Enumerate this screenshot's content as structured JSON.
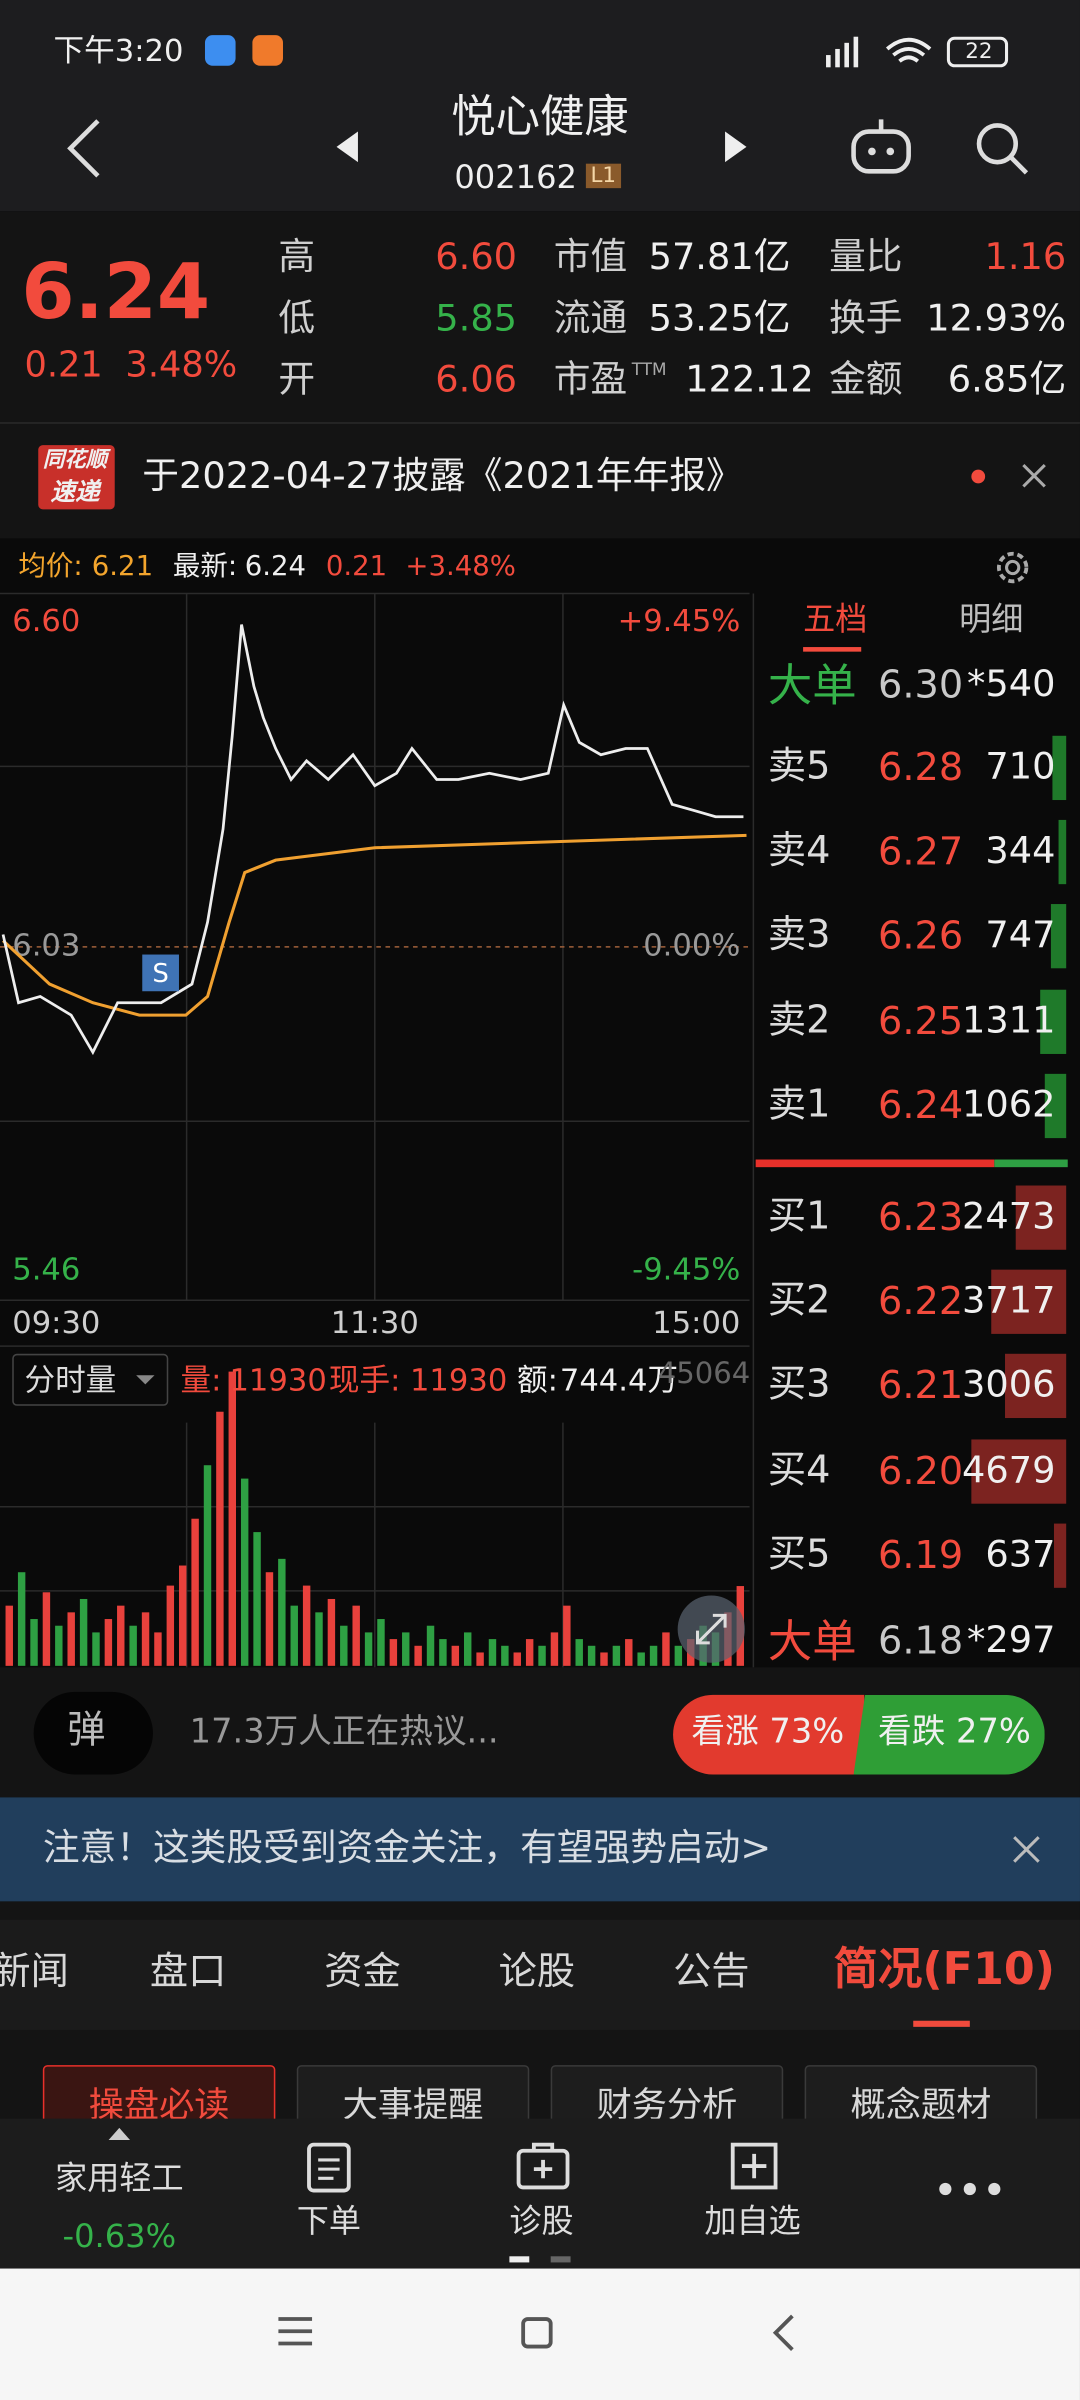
{
  "status_bar": {
    "time": "下午3:20",
    "battery": "22"
  },
  "header": {
    "title": "悦心健康",
    "code": "002162",
    "level": "L1"
  },
  "quote": {
    "price": "6.24",
    "change": "0.21",
    "change_pct": "3.48%",
    "left": [
      {
        "label": "高",
        "value": "6.60"
      },
      {
        "label": "低",
        "value": "5.85"
      },
      {
        "label": "开",
        "value": "6.06"
      }
    ],
    "mid": [
      {
        "label": "市值",
        "value": "57.81亿"
      },
      {
        "label": "流通",
        "value": "53.25亿"
      },
      {
        "label": "市盈",
        "sup": "TTM",
        "value": "122.12"
      }
    ],
    "right": [
      {
        "label": "量比",
        "value": "1.16"
      },
      {
        "label": "换手",
        "value": "12.93%"
      },
      {
        "label": "金额",
        "value": "6.85亿"
      }
    ]
  },
  "notice": {
    "badge_top": "同花顺",
    "badge_bottom": "速递",
    "text": "于2022-04-27披露《2021年年报》"
  },
  "chart": {
    "avg_label": "均价:",
    "avg": "6.21",
    "latest_label": "最新:",
    "latest": "6.24",
    "change": "0.21",
    "change_pct": "+3.48%",
    "ylim": [
      5.46,
      6.6
    ],
    "yticks": [
      {
        "value": 6.6,
        "label": "6.60"
      },
      {
        "value": 6.03,
        "label": "6.03"
      },
      {
        "value": 5.46,
        "label": "5.46"
      }
    ],
    "pct_labels": [
      "+9.45%",
      "0.00%",
      "-9.45%"
    ],
    "times": [
      "09:30",
      "11:30",
      "15:00"
    ],
    "xlim": [
      0,
      240
    ],
    "signal": "S",
    "minutes": [
      0,
      5,
      12,
      22,
      29,
      37,
      44,
      51,
      61,
      66,
      71,
      74,
      77,
      81,
      84,
      88,
      93,
      98,
      105,
      113,
      120,
      127,
      132,
      140,
      147,
      157,
      167,
      176,
      181,
      186,
      193,
      201,
      208,
      216,
      223,
      230,
      239
    ],
    "price": [
      6.05,
      5.94,
      5.95,
      5.92,
      5.86,
      5.94,
      5.94,
      5.94,
      5.97,
      6.07,
      6.22,
      6.37,
      6.55,
      6.45,
      6.4,
      6.35,
      6.3,
      6.33,
      6.3,
      6.34,
      6.29,
      6.31,
      6.35,
      6.3,
      6.3,
      6.31,
      6.3,
      6.31,
      6.42,
      6.36,
      6.34,
      6.35,
      6.35,
      6.26,
      6.25,
      6.24,
      6.24
    ],
    "avg_minutes": [
      0,
      15,
      29,
      44,
      59,
      66,
      73,
      78,
      88,
      120,
      180,
      240
    ],
    "avg_line": [
      6.04,
      5.97,
      5.94,
      5.92,
      5.92,
      5.95,
      6.07,
      6.15,
      6.17,
      6.19,
      6.2,
      6.21
    ]
  },
  "volume": {
    "mode": "分时量",
    "vol_label": "量:",
    "vol": "11930",
    "hand_label": "现手:",
    "hand": "11930",
    "amount_label": "额:",
    "amount": "744.4万",
    "max_label": "45064",
    "ylim": [
      0,
      45064
    ],
    "values": [
      9000,
      14000,
      7000,
      11000,
      6000,
      8000,
      10000,
      5000,
      7000,
      9000,
      6000,
      8000,
      5000,
      12000,
      15000,
      22000,
      30000,
      38000,
      44000,
      28000,
      20000,
      14000,
      16000,
      9000,
      12000,
      8000,
      10000,
      6000,
      9000,
      5000,
      7000,
      4000,
      5000,
      3000,
      6000,
      4000,
      3000,
      5000,
      2000,
      4000,
      3000,
      2000,
      4000,
      3000,
      5000,
      9000,
      4000,
      3000,
      2000,
      3000,
      4000,
      2000,
      3000,
      5000,
      3000,
      4000,
      6000,
      5000,
      8000,
      11930
    ],
    "bar_colors": [
      "#e8413c",
      "#2ea043",
      "#2ea043",
      "#e8413c",
      "#2ea043",
      "#e8413c",
      "#2ea043",
      "#2ea043",
      "#e8413c",
      "#e8413c",
      "#2ea043",
      "#e8413c",
      "#e8413c",
      "#e8413c",
      "#e8413c",
      "#e8413c",
      "#2ea043",
      "#e8413c",
      "#e8413c",
      "#2ea043",
      "#2ea043",
      "#e8413c",
      "#2ea043",
      "#2ea043",
      "#e8413c",
      "#2ea043",
      "#e8413c",
      "#2ea043",
      "#e8413c",
      "#2ea043",
      "#2ea043",
      "#e8413c",
      "#2ea043",
      "#e8413c",
      "#2ea043",
      "#2ea043",
      "#e8413c",
      "#2ea043",
      "#e8413c",
      "#2ea043",
      "#2ea043",
      "#e8413c",
      "#e8413c",
      "#2ea043",
      "#e8413c",
      "#e8413c",
      "#2ea043",
      "#2ea043",
      "#e8413c",
      "#2ea043",
      "#e8413c",
      "#2ea043",
      "#2ea043",
      "#e8413c",
      "#2ea043",
      "#e8413c",
      "#2ea043",
      "#2ea043",
      "#e8413c",
      "#e8413c"
    ]
  },
  "orderbook": {
    "tabs": [
      "五档",
      "明细"
    ],
    "big_sell": {
      "label": "大单",
      "price": "6.30",
      "vol": "*540"
    },
    "asks": [
      {
        "label": "卖5",
        "price": "6.28",
        "vol": "710"
      },
      {
        "label": "卖4",
        "price": "6.27",
        "vol": "344"
      },
      {
        "label": "卖3",
        "price": "6.26",
        "vol": "747"
      },
      {
        "label": "卖2",
        "price": "6.25",
        "vol": "1311"
      },
      {
        "label": "卖1",
        "price": "6.24",
        "vol": "1062"
      }
    ],
    "bids": [
      {
        "label": "买1",
        "price": "6.23",
        "vol": "2473"
      },
      {
        "label": "买2",
        "price": "6.22",
        "vol": "3717"
      },
      {
        "label": "买3",
        "price": "6.21",
        "vol": "3006"
      },
      {
        "label": "买4",
        "price": "6.20",
        "vol": "4679"
      },
      {
        "label": "买5",
        "price": "6.19",
        "vol": "637"
      }
    ],
    "big_buy": {
      "label": "大单",
      "price": "6.18",
      "vol": "*297"
    }
  },
  "discussion": {
    "icon": "弹",
    "text": "17.3万人正在热议...",
    "up": "看涨 73%",
    "down": "看跌 27%"
  },
  "banner": "注意！这类股受到资金关注，有望强势启动>",
  "tabs": [
    "新闻",
    "盘口",
    "资金",
    "论股",
    "公告",
    "简况(F10)"
  ],
  "buttons": [
    "操盘必读",
    "大事提醒",
    "财务分析",
    "概念题材"
  ],
  "toolbar": {
    "sector": "家用轻工",
    "sector_change": "-0.63%",
    "items": [
      "下单",
      "诊股",
      "加自选"
    ]
  }
}
